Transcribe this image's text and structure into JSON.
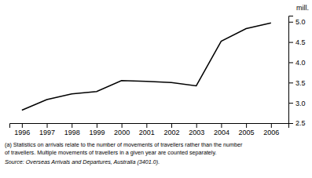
{
  "chart_data": {
    "type": "line",
    "x": [
      1996,
      1997,
      1998,
      1999,
      2000,
      2001,
      2002,
      2003,
      2004,
      2005,
      2006
    ],
    "values": [
      2.82,
      3.08,
      3.22,
      3.28,
      3.55,
      3.53,
      3.5,
      3.42,
      4.52,
      4.83,
      4.97
    ],
    "color": "#000000",
    "xlim": [
      1995.5,
      2006.7
    ],
    "ylim": [
      2.5,
      5.15
    ],
    "xticks": [
      1996,
      1997,
      1998,
      1999,
      2000,
      2001,
      2002,
      2003,
      2004,
      2005,
      2006
    ],
    "yticks": [
      2.5,
      {
        "value": 3.0,
        "label": "3.0"
      },
      3.5,
      {
        "value": 4.0,
        "label": "4.0"
      },
      4.5,
      {
        "value": 5.0,
        "label": "5.0"
      }
    ],
    "y_label": "mill.",
    "grid": false,
    "annotations": [
      "(a) Statistics on arrivals relate to the number of movements of travellers rather than the number",
      "of travellers. Multiple movements of travellers in a given year are counted separately.",
      "Source: Overseas Arrivals and Departures, Australia (3401.0)."
    ]
  }
}
